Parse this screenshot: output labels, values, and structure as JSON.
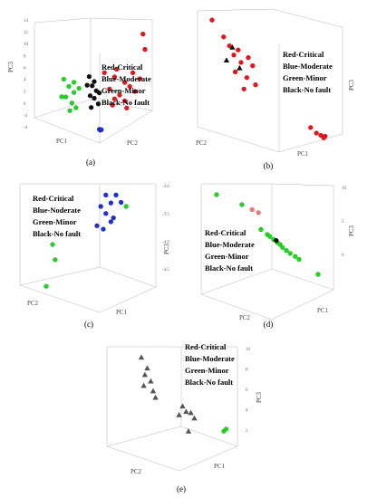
{
  "panels": [
    {
      "label": "(a)",
      "legend": [
        "Red-Critical",
        "Blue-Moderate",
        "Green-Minor",
        "Black-No fault"
      ],
      "axis_titles": {
        "x": "PC1",
        "y": "PC2",
        "z": "PC3"
      },
      "z_ticks": [
        "14",
        "12",
        "10",
        "8",
        "6",
        "4",
        "2",
        "0",
        "-2",
        "-4"
      ]
    },
    {
      "label": "(b)",
      "legend": [
        "Red-Critical",
        "Blue-Moderate",
        "Green-Minor",
        "Black-No fault"
      ],
      "axis_titles": {
        "x": "PC1",
        "y": "PC2",
        "z": "PC3"
      },
      "z_ticks": []
    },
    {
      "label": "(c)",
      "legend": [
        "Red-Critical",
        "Blue-Noderate",
        "Green-Minor",
        "Black-No fault"
      ],
      "axis_titles": {
        "x": "PC1",
        "y": "PC2",
        "z": "PC3"
      },
      "z_ticks": [
        "-3.0",
        "-3.5",
        "-4.0",
        "-4.5"
      ]
    },
    {
      "label": "(d)",
      "legend": [
        "Red-Critical",
        "Blue-Moderate",
        "Green-Minor",
        "Black-No fault"
      ],
      "axis_titles": {
        "x": "PC1",
        "y": "PC2",
        "z": "PC3"
      },
      "z_ticks": [
        "10",
        "5",
        "0"
      ]
    },
    {
      "label": "(e)",
      "legend": [
        "Red-Critical",
        "Blue-Moderate",
        "Green-Minor",
        "Black-No fault"
      ],
      "axis_titles": {
        "x": "PC1",
        "y": "PC2",
        "z": "PC3"
      },
      "z_ticks": [
        "10",
        "8",
        "6",
        "4",
        "2"
      ]
    }
  ],
  "colors": {
    "critical": "#e8141c",
    "moderate": "#1f2fd6",
    "minor": "#22d422",
    "no_fault": "#111111",
    "light_red": "#f07a7a"
  },
  "chart_data": [
    {
      "type": "scatter",
      "panel": "(a)",
      "zlim": [
        -4,
        14
      ],
      "series": [
        {
          "name": "Red-Critical",
          "color": "critical",
          "points": [
            [
              0.6,
              0.5,
              5.8
            ],
            [
              0.7,
              0.4,
              5.0
            ],
            [
              0.8,
              0.5,
              4.3
            ],
            [
              0.65,
              0.45,
              3.2
            ],
            [
              0.75,
              0.55,
              2.4
            ],
            [
              0.7,
              0.4,
              1.6
            ],
            [
              0.85,
              0.6,
              3.8
            ],
            [
              0.9,
              0.5,
              2.9
            ],
            [
              0.8,
              0.35,
              1.2
            ],
            [
              0.72,
              0.62,
              6.5
            ],
            [
              0.95,
              0.45,
              4.8
            ],
            [
              0.68,
              0.38,
              0.6
            ],
            [
              0.88,
              0.65,
              6.0
            ],
            [
              1.0,
              0.55,
              9.5
            ],
            [
              0.98,
              0.5,
              11.8
            ],
            [
              0.82,
              0.42,
              0.2
            ]
          ]
        },
        {
          "name": "Blue-Moderate",
          "color": "moderate",
          "points": [
            [
              0.55,
              0.5,
              -3.0
            ],
            [
              0.56,
              0.52,
              -3.1
            ],
            [
              0.57,
              0.5,
              -3.05
            ]
          ]
        },
        {
          "name": "Green-Minor",
          "color": "minor",
          "points": [
            [
              0.2,
              0.5,
              4.8
            ],
            [
              0.25,
              0.45,
              3.6
            ],
            [
              0.3,
              0.55,
              2.8
            ],
            [
              0.22,
              0.4,
              1.9
            ],
            [
              0.28,
              0.5,
              1.1
            ],
            [
              0.32,
              0.6,
              0.5
            ],
            [
              0.26,
              0.35,
              -0.3
            ],
            [
              0.35,
              0.45,
              3.3
            ],
            [
              0.18,
              0.6,
              2.2
            ],
            [
              0.3,
              0.42,
              4.2
            ]
          ]
        },
        {
          "name": "Black-No fault",
          "color": "no_fault",
          "points": [
            [
              0.45,
              0.5,
              5.2
            ],
            [
              0.5,
              0.55,
              4.5
            ],
            [
              0.48,
              0.45,
              3.7
            ],
            [
              0.52,
              0.5,
              3.0
            ],
            [
              0.46,
              0.55,
              2.3
            ],
            [
              0.5,
              0.4,
              1.7
            ],
            [
              0.54,
              0.6,
              1.1
            ],
            [
              0.47,
              0.5,
              0.4
            ],
            [
              0.55,
              0.45,
              2.6
            ],
            [
              0.43,
              0.6,
              4.0
            ]
          ]
        }
      ]
    },
    {
      "type": "scatter",
      "panel": "(b)",
      "series": [
        {
          "name": "Red-Critical",
          "color": "critical",
          "points": [
            [
              0.1,
              0.5,
              0.95
            ],
            [
              0.18,
              0.5,
              0.82
            ],
            [
              0.22,
              0.48,
              0.75
            ],
            [
              0.28,
              0.52,
              0.72
            ],
            [
              0.25,
              0.5,
              0.68
            ],
            [
              0.35,
              0.5,
              0.66
            ],
            [
              0.3,
              0.45,
              0.62
            ],
            [
              0.38,
              0.55,
              0.6
            ],
            [
              0.26,
              0.5,
              0.55
            ],
            [
              0.34,
              0.4,
              0.5
            ],
            [
              0.4,
              0.5,
              0.45
            ],
            [
              0.32,
              0.55,
              0.42
            ],
            [
              0.78,
              0.5,
              0.12
            ],
            [
              0.82,
              0.55,
              0.08
            ],
            [
              0.85,
              0.5,
              0.06
            ],
            [
              0.88,
              0.45,
              0.05
            ],
            [
              0.87,
              0.5,
              0.04
            ]
          ]
        },
        {
          "name": "Black-No fault",
          "color": "no_fault",
          "points": [
            [
              0.24,
              0.5,
              0.74
            ],
            [
              0.2,
              0.5,
              0.64
            ],
            [
              0.29,
              0.5,
              0.58
            ]
          ]
        }
      ]
    },
    {
      "type": "scatter",
      "panel": "(c)",
      "zlim": [
        -4.5,
        -3.0
      ],
      "series": [
        {
          "name": "Blue-Noderate",
          "color": "moderate",
          "points": [
            [
              0.62,
              0.5,
              -3.1
            ],
            [
              0.7,
              0.5,
              -3.1
            ],
            [
              0.66,
              0.55,
              -3.2
            ],
            [
              0.58,
              0.5,
              -3.25
            ],
            [
              0.74,
              0.45,
              -3.2
            ],
            [
              0.62,
              0.4,
              -3.35
            ],
            [
              0.68,
              0.5,
              -3.4
            ],
            [
              0.55,
              0.55,
              -3.5
            ],
            [
              0.6,
              0.48,
              -3.55
            ],
            [
              0.66,
              0.52,
              -3.45
            ]
          ]
        },
        {
          "name": "Green-Minor",
          "color": "minor",
          "points": [
            [
              0.2,
              0.5,
              -3.75
            ],
            [
              0.22,
              0.5,
              -3.95
            ],
            [
              0.15,
              0.5,
              -4.3
            ],
            [
              0.78,
              0.5,
              -3.25
            ]
          ]
        }
      ]
    },
    {
      "type": "scatter",
      "panel": "(d)",
      "zlim": [
        0,
        10
      ],
      "series": [
        {
          "name": "Green-Minor",
          "color": "minor",
          "points": [
            [
              0.1,
              0.5,
              10
            ],
            [
              0.3,
              0.5,
              9
            ],
            [
              0.45,
              0.5,
              6.5
            ],
            [
              0.5,
              0.5,
              6.0
            ],
            [
              0.52,
              0.5,
              5.8
            ],
            [
              0.55,
              0.5,
              5.5
            ],
            [
              0.58,
              0.5,
              5.2
            ],
            [
              0.6,
              0.5,
              5.0
            ],
            [
              0.62,
              0.5,
              4.7
            ],
            [
              0.65,
              0.5,
              4.4
            ],
            [
              0.68,
              0.5,
              4.1
            ],
            [
              0.72,
              0.5,
              3.8
            ],
            [
              0.75,
              0.5,
              3.5
            ],
            [
              0.9,
              0.5,
              2.0
            ]
          ]
        },
        {
          "name": "Red-Critical",
          "color": "light_red",
          "points": [
            [
              0.38,
              0.5,
              8.5
            ],
            [
              0.43,
              0.5,
              8.2
            ]
          ]
        },
        {
          "name": "Black-No fault",
          "color": "no_fault",
          "points": [
            [
              0.57,
              0.5,
              5.4
            ]
          ]
        }
      ]
    },
    {
      "type": "scatter",
      "panel": "(e)",
      "zlim": [
        0,
        10
      ],
      "series": [
        {
          "name": "Black-No fault",
          "color": "no_fault",
          "points": [
            [
              0.2,
              0.5,
              9.2
            ],
            [
              0.25,
              0.5,
              8.2
            ],
            [
              0.23,
              0.5,
              7.6
            ],
            [
              0.28,
              0.5,
              7.0
            ],
            [
              0.22,
              0.5,
              6.6
            ],
            [
              0.3,
              0.5,
              6.1
            ],
            [
              0.32,
              0.5,
              5.5
            ],
            [
              0.55,
              0.5,
              4.7
            ],
            [
              0.58,
              0.5,
              4.2
            ],
            [
              0.52,
              0.5,
              3.9
            ],
            [
              0.62,
              0.5,
              4.1
            ],
            [
              0.65,
              0.5,
              3.6
            ],
            [
              0.6,
              0.5,
              2.4
            ]
          ]
        },
        {
          "name": "Green-Minor",
          "color": "minor",
          "points": [
            [
              0.9,
              0.5,
              2.4
            ],
            [
              0.92,
              0.5,
              2.6
            ]
          ]
        }
      ]
    }
  ]
}
